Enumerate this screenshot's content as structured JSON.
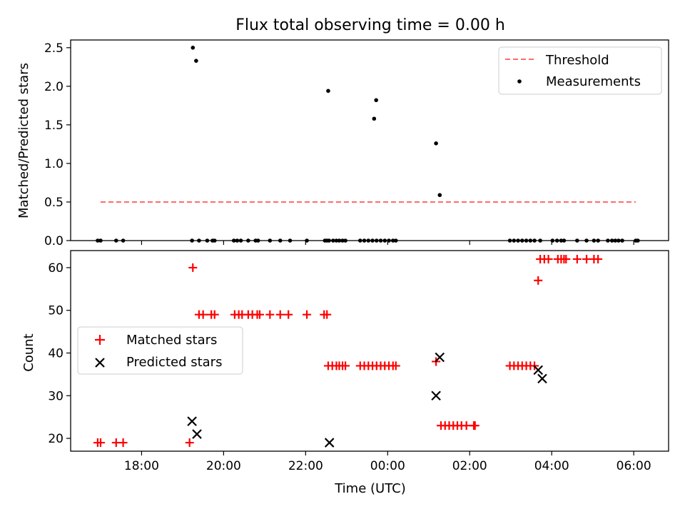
{
  "chart_data": [
    {
      "type": "scatter",
      "title": "Flux total observing time = 0.00 h",
      "xlabel": "",
      "ylabel": "Matched/Predicted stars",
      "ylim": [
        0,
        2.6
      ],
      "xlim": [
        16.27,
        30.85
      ],
      "yticks": [
        0.0,
        0.5,
        1.0,
        1.5,
        2.0,
        2.5
      ],
      "ytick_labels": [
        "0.0",
        "0.5",
        "1.0",
        "1.5",
        "2.0",
        "2.5"
      ],
      "legend_position": "top-right",
      "threshold": {
        "name": "Threshold",
        "value": 0.5,
        "x_start": 17.0,
        "x_end": 30.05,
        "color": "#ff6b6b"
      },
      "series": [
        {
          "name": "Measurements",
          "marker": "dot",
          "color": "#000000",
          "points": [
            [
              16.93,
              0
            ],
            [
              17.0,
              0
            ],
            [
              17.38,
              0
            ],
            [
              17.55,
              0
            ],
            [
              19.23,
              0
            ],
            [
              19.4,
              0
            ],
            [
              19.6,
              0
            ],
            [
              19.73,
              0
            ],
            [
              19.78,
              0
            ],
            [
              20.25,
              0
            ],
            [
              20.33,
              0
            ],
            [
              20.42,
              0
            ],
            [
              20.6,
              0
            ],
            [
              20.78,
              0
            ],
            [
              20.84,
              0
            ],
            [
              21.13,
              0
            ],
            [
              21.38,
              0
            ],
            [
              21.62,
              0
            ],
            [
              22.03,
              0
            ],
            [
              22.47,
              0
            ],
            [
              22.52,
              0
            ],
            [
              22.57,
              0
            ],
            [
              22.67,
              0
            ],
            [
              22.75,
              0
            ],
            [
              22.82,
              0
            ],
            [
              22.9,
              0
            ],
            [
              22.97,
              0
            ],
            [
              23.33,
              0
            ],
            [
              23.43,
              0
            ],
            [
              23.53,
              0
            ],
            [
              23.63,
              0
            ],
            [
              23.73,
              0
            ],
            [
              23.83,
              0
            ],
            [
              23.93,
              0
            ],
            [
              24.03,
              0
            ],
            [
              24.13,
              0
            ],
            [
              24.2,
              0
            ],
            [
              26.98,
              0
            ],
            [
              27.08,
              0
            ],
            [
              27.18,
              0
            ],
            [
              27.28,
              0
            ],
            [
              27.38,
              0
            ],
            [
              27.48,
              0
            ],
            [
              27.58,
              0
            ],
            [
              27.72,
              0
            ],
            [
              28.02,
              0
            ],
            [
              28.13,
              0
            ],
            [
              28.23,
              0
            ],
            [
              28.3,
              0
            ],
            [
              28.62,
              0
            ],
            [
              28.85,
              0
            ],
            [
              29.03,
              0
            ],
            [
              29.13,
              0
            ],
            [
              29.37,
              0
            ],
            [
              29.47,
              0
            ],
            [
              29.55,
              0
            ],
            [
              29.63,
              0
            ],
            [
              29.72,
              0
            ],
            [
              30.05,
              0
            ],
            [
              30.1,
              0
            ],
            [
              19.25,
              2.5
            ],
            [
              19.33,
              2.33
            ],
            [
              22.55,
              1.94
            ],
            [
              23.72,
              1.82
            ],
            [
              23.67,
              1.58
            ],
            [
              25.18,
              1.26
            ],
            [
              25.27,
              0.59
            ]
          ]
        }
      ]
    },
    {
      "type": "scatter",
      "title": "",
      "xlabel": "Time (UTC)",
      "ylabel": "Count",
      "ylim": [
        17,
        64
      ],
      "xlim": [
        16.27,
        30.85
      ],
      "yticks": [
        20,
        30,
        40,
        50,
        60
      ],
      "ytick_labels": [
        "20",
        "30",
        "40",
        "50",
        "60"
      ],
      "xticks": [
        18,
        20,
        22,
        24,
        26,
        28,
        30
      ],
      "xtick_labels": [
        "18:00",
        "20:00",
        "22:00",
        "00:00",
        "02:00",
        "04:00",
        "06:00"
      ],
      "legend_position": "center-left",
      "series": [
        {
          "name": "Matched stars",
          "marker": "plus",
          "color": "#ff0000",
          "points": [
            [
              16.93,
              19
            ],
            [
              17.0,
              19
            ],
            [
              17.38,
              19
            ],
            [
              17.55,
              19
            ],
            [
              19.17,
              19
            ],
            [
              19.25,
              60
            ],
            [
              19.4,
              49
            ],
            [
              19.5,
              49
            ],
            [
              19.7,
              49
            ],
            [
              19.78,
              49
            ],
            [
              20.27,
              49
            ],
            [
              20.37,
              49
            ],
            [
              20.45,
              49
            ],
            [
              20.6,
              49
            ],
            [
              20.7,
              49
            ],
            [
              20.82,
              49
            ],
            [
              20.88,
              49
            ],
            [
              21.13,
              49
            ],
            [
              21.38,
              49
            ],
            [
              21.58,
              49
            ],
            [
              22.03,
              49
            ],
            [
              22.45,
              49
            ],
            [
              22.52,
              49
            ],
            [
              22.55,
              37
            ],
            [
              22.65,
              37
            ],
            [
              22.75,
              37
            ],
            [
              22.82,
              37
            ],
            [
              22.9,
              37
            ],
            [
              22.97,
              37
            ],
            [
              23.33,
              37
            ],
            [
              23.43,
              37
            ],
            [
              23.53,
              37
            ],
            [
              23.63,
              37
            ],
            [
              23.73,
              37
            ],
            [
              23.83,
              37
            ],
            [
              23.93,
              37
            ],
            [
              24.03,
              37
            ],
            [
              24.13,
              37
            ],
            [
              24.2,
              37
            ],
            [
              26.98,
              37
            ],
            [
              27.08,
              37
            ],
            [
              27.18,
              37
            ],
            [
              27.28,
              37
            ],
            [
              27.38,
              37
            ],
            [
              27.48,
              37
            ],
            [
              27.58,
              37
            ],
            [
              27.67,
              57
            ],
            [
              27.72,
              62
            ],
            [
              27.82,
              62
            ],
            [
              27.92,
              62
            ],
            [
              28.15,
              62
            ],
            [
              28.23,
              62
            ],
            [
              28.3,
              62
            ],
            [
              28.35,
              62
            ],
            [
              28.62,
              62
            ],
            [
              28.85,
              62
            ],
            [
              29.03,
              62
            ],
            [
              29.13,
              62
            ],
            [
              25.18,
              38
            ],
            [
              25.3,
              23
            ],
            [
              25.4,
              23
            ],
            [
              25.5,
              23
            ],
            [
              25.6,
              23
            ],
            [
              25.7,
              23
            ],
            [
              25.8,
              23
            ],
            [
              25.92,
              23
            ],
            [
              26.1,
              23
            ],
            [
              26.13,
              23
            ]
          ]
        },
        {
          "name": "Predicted stars",
          "marker": "x",
          "color": "#000000",
          "points": [
            [
              19.23,
              24
            ],
            [
              19.35,
              21
            ],
            [
              22.58,
              19
            ],
            [
              27.67,
              36
            ],
            [
              27.77,
              34
            ],
            [
              25.18,
              30
            ],
            [
              25.27,
              39
            ]
          ]
        }
      ]
    }
  ]
}
